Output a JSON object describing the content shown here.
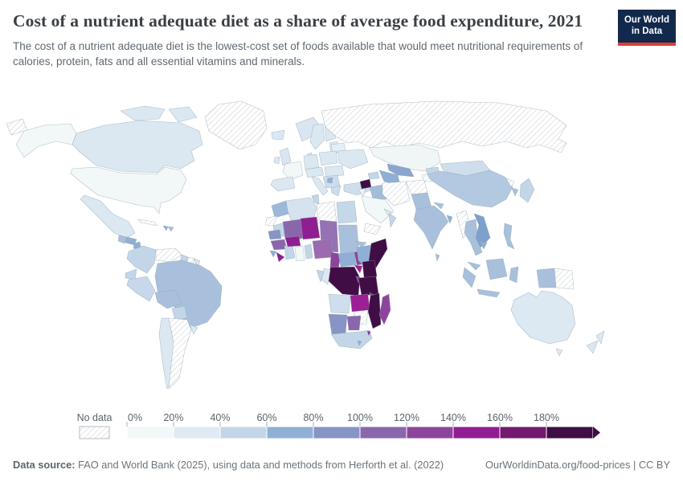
{
  "header": {
    "title": "Cost of a nutrient adequate diet as a share of average food expenditure, 2021",
    "subtitle": "The cost of a nutrient adequate diet is the lowest-cost set of foods available that would meet nutritional requirements of calories, protein, fats and all essential vitamins and minerals.",
    "logo_line1": "Our World",
    "logo_line2": "in Data",
    "logo_bg": "#12294d",
    "logo_accent": "#dc3e32"
  },
  "footer": {
    "source_label": "Data source:",
    "source_text": " FAO and World Bank (2025), using data and methods from Herforth et al. (2022)",
    "link_text": "OurWorldinData.org/food-prices | CC BY"
  },
  "chart_data": {
    "type": "choropleth_map",
    "title": "Cost of a nutrient adequate diet as a share of average food expenditure",
    "year": "2021",
    "unit": "%",
    "projection": "world",
    "legend": {
      "no_data_label": "No data",
      "tick_labels": [
        "0%",
        "20%",
        "40%",
        "60%",
        "80%",
        "100%",
        "120%",
        "140%",
        "160%",
        "180%"
      ],
      "bin_colors": [
        "#f2f8f7",
        "#dfeaf3",
        "#c2d6e8",
        "#8fb0d4",
        "#8794c6",
        "#8a67ad",
        "#8d459c",
        "#911d92",
        "#731a70",
        "#400d45"
      ],
      "bin_ranges": [
        "0-20%",
        "20-40%",
        "40-60%",
        "60-80%",
        "80-100%",
        "100-120%",
        "120-140%",
        "140-160%",
        "160-180%",
        "180%+"
      ],
      "open_ended_max": true,
      "no_data_pattern": "diagonal-hatch"
    },
    "regions": {
      "United States": {
        "bin": "0-20%",
        "color": "#f2f8f7"
      },
      "France": {
        "bin": "0-20%",
        "color": "#f2f8f7"
      },
      "Kazakhstan": {
        "bin": "0-20%",
        "color": "#f0f6f6"
      },
      "Saudi Arabia": {
        "bin": "0-20%",
        "color": "#f2f8f7"
      },
      "Ghana": {
        "bin": "0-20%",
        "color": "#f2f8f7"
      },
      "Jordan": {
        "bin": "0-20%",
        "color": "#eef4f5"
      },
      "Canada": {
        "bin": "20-40%",
        "color": "#dbe8f2"
      },
      "United Kingdom": {
        "bin": "20-40%",
        "color": "#d9e6f1"
      },
      "Ireland": {
        "bin": "20-40%",
        "color": "#dbe8f2"
      },
      "Iceland": {
        "bin": "20-40%",
        "color": "#dbe8f2"
      },
      "Norway": {
        "bin": "20-40%",
        "color": "#d9e6f1"
      },
      "Sweden": {
        "bin": "20-40%",
        "color": "#dbe8f2"
      },
      "Finland": {
        "bin": "20-40%",
        "color": "#dbe8f2"
      },
      "Denmark": {
        "bin": "20-40%",
        "color": "#dbe8f2"
      },
      "Germany": {
        "bin": "20-40%",
        "color": "#dbe8f2"
      },
      "Central Europe": {
        "bin": "20-40%",
        "color": "#dbe8f2"
      },
      "Poland": {
        "bin": "20-40%",
        "color": "#dbe8f2"
      },
      "Ukraine": {
        "bin": "20-40%",
        "color": "#dbe8f2"
      },
      "Belarus": {
        "bin": "20-40%",
        "color": "#e4eef5"
      },
      "Baltics": {
        "bin": "20-40%",
        "color": "#dbe8f2"
      },
      "Romania": {
        "bin": "20-40%",
        "color": "#dbe8f2"
      },
      "Spain": {
        "bin": "20-40%",
        "color": "#dbe8f2"
      },
      "Italy": {
        "bin": "20-40%",
        "color": "#dbe8f2"
      },
      "Greece": {
        "bin": "20-40%",
        "color": "#ccdcec"
      },
      "Mexico": {
        "bin": "20-40%",
        "color": "#dbe8f2"
      },
      "Chile": {
        "bin": "20-40%",
        "color": "#dbe8f2"
      },
      "Uruguay": {
        "bin": "20-40%",
        "color": "#dbe8f2"
      },
      "French Guiana": {
        "bin": "20-40%",
        "color": "#dbe8f2"
      },
      "Australia": {
        "bin": "20-40%",
        "color": "#dce9f3"
      },
      "New Zealand": {
        "bin": "20-40%",
        "color": "#dbe8f2"
      },
      "Algeria": {
        "bin": "20-40%",
        "color": "#d5e3ef"
      },
      "Angola": {
        "bin": "20-40%",
        "color": "#cfdeed"
      },
      "Mongolia": {
        "bin": "20-40%",
        "color": "#cfdeed"
      },
      "Congo": {
        "bin": "20-40%",
        "color": "#dbe8f2"
      },
      "United Arab Emirates": {
        "bin": "20-40%",
        "color": "#dbe8f2"
      },
      "Colombia": {
        "bin": "40-60%",
        "color": "#c2d6e8"
      },
      "Peru": {
        "bin": "40-60%",
        "color": "#c6d8ea"
      },
      "Ecuador": {
        "bin": "40-60%",
        "color": "#c2d6e8"
      },
      "Paraguay": {
        "bin": "40-60%",
        "color": "#c2d6e8"
      },
      "Guyana": {
        "bin": "40-60%",
        "color": "#c2d6e8"
      },
      "South Africa": {
        "bin": "40-60%",
        "color": "#c2d6e8"
      },
      "Egypt": {
        "bin": "40-60%",
        "color": "#c5d8ea"
      },
      "Tunisia": {
        "bin": "40-60%",
        "color": "#c2d6e8"
      },
      "Mauritania": {
        "bin": "40-60%",
        "color": "#c2d6e8"
      },
      "Cote d'Ivoire": {
        "bin": "40-60%",
        "color": "#c2d6e8"
      },
      "Togo and Benin": {
        "bin": "40-60%",
        "color": "#c2d6e8"
      },
      "Japan": {
        "bin": "40-60%",
        "color": "#c2d6e8"
      },
      "Turkey": {
        "bin": "40-60%",
        "color": "#cfdeed"
      },
      "Gabon": {
        "bin": "40-60%",
        "color": "#c2d6e8"
      },
      "Costa Rica": {
        "bin": "40-60%",
        "color": "#c2d6e8"
      },
      "Oman": {
        "bin": "40-60%",
        "color": "#c2d6e8"
      },
      "Kyrgyzstan": {
        "bin": "40-60%",
        "color": "#c2d6e8"
      },
      "Caucasus": {
        "bin": "40-60%",
        "color": "#c2d6e8"
      },
      "China": {
        "bin": "40-60%",
        "color": "#b3c9e1"
      },
      "Brazil": {
        "bin": "60-80%",
        "color": "#a9c0dc"
      },
      "Bolivia": {
        "bin": "60-80%",
        "color": "#a9c0dc"
      },
      "Guatemala": {
        "bin": "60-80%",
        "color": "#a9c0dc"
      },
      "Panama": {
        "bin": "60-80%",
        "color": "#a9c0dc"
      },
      "Dominican Republic": {
        "bin": "60-80%",
        "color": "#a9c0dc"
      },
      "India": {
        "bin": "60-80%",
        "color": "#a9c0dc"
      },
      "Indonesia": {
        "bin": "60-80%",
        "color": "#a9c0dc"
      },
      "Philippines": {
        "bin": "60-80%",
        "color": "#a9c0dc"
      },
      "Malaysia": {
        "bin": "60-80%",
        "color": "#a9c0dc"
      },
      "Thailand": {
        "bin": "60-80%",
        "color": "#a9c0dc"
      },
      "Sudan": {
        "bin": "60-80%",
        "color": "#a9c0dc"
      },
      "Iraq": {
        "bin": "60-80%",
        "color": "#a3bcd9"
      },
      "Pakistan": {
        "bin": "60-80%",
        "color": "#a9c0dc"
      },
      "Sri Lanka": {
        "bin": "60-80%",
        "color": "#a9c0dc"
      },
      "Nepal": {
        "bin": "60-80%",
        "color": "#a9c0dc"
      },
      "Eritrea": {
        "bin": "60-80%",
        "color": "#a9c0dc"
      },
      "South Korea": {
        "bin": "60-80%",
        "color": "#a9c0dc"
      },
      "Vietnam": {
        "bin": "80-100%",
        "color": "#7f9fcd"
      },
      "Cambodia": {
        "bin": "80-100%",
        "color": "#8fb0d4"
      },
      "Honduras": {
        "bin": "80-100%",
        "color": "#8fb0d4"
      },
      "Nicaragua": {
        "bin": "80-100%",
        "color": "#8fb0d4"
      },
      "Haiti": {
        "bin": "80-100%",
        "color": "#8fb0d4"
      },
      "Uzbekistan": {
        "bin": "80-100%",
        "color": "#8aa6ce"
      },
      "Turkmenistan": {
        "bin": "80-100%",
        "color": "#8fb0d4"
      },
      "Ethiopia": {
        "bin": "80-100%",
        "color": "#8fb0d4"
      },
      "Central African Republic": {
        "bin": "80-100%",
        "color": "#8fb0d4"
      },
      "Sierra Leone": {
        "bin": "80-100%",
        "color": "#8fb0d4"
      },
      "Morocco": {
        "bin": "80-100%",
        "color": "#9db8d8"
      },
      "Bangladesh": {
        "bin": "80-100%",
        "color": "#8fb0d4"
      },
      "Lesotho": {
        "bin": "80-100%",
        "color": "#8fb0d4"
      },
      "Bosnia": {
        "bin": "80-100%",
        "color": "#8fb0d4"
      },
      "Senegal": {
        "bin": "80-100%",
        "color": "#8794c6"
      },
      "Namibia": {
        "bin": "80-100%",
        "color": "#8794c6"
      },
      "Mali": {
        "bin": "100-120%",
        "color": "#8a67ad"
      },
      "Guinea": {
        "bin": "100-120%",
        "color": "#8a67ad"
      },
      "Nigeria": {
        "bin": "100-120%",
        "color": "#9b6ab0"
      },
      "Botswana": {
        "bin": "100-120%",
        "color": "#8a67ad"
      },
      "Chad": {
        "bin": "100-120%",
        "color": "#9572b4"
      },
      "Cameroon": {
        "bin": "120-140%",
        "color": "#8d459c"
      },
      "South Sudan": {
        "bin": "120-140%",
        "color": "#8d459c"
      },
      "Madagascar": {
        "bin": "120-140%",
        "color": "#8d459c"
      },
      "Malawi": {
        "bin": "120-140%",
        "color": "#8d459c"
      },
      "Rwanda and Burundi": {
        "bin": "120-140%",
        "color": "#8d459c"
      },
      "Niger": {
        "bin": "140-160%",
        "color": "#911d92"
      },
      "Burkina Faso": {
        "bin": "140-160%",
        "color": "#911d92"
      },
      "Liberia": {
        "bin": "140-160%",
        "color": "#911d92"
      },
      "Uganda": {
        "bin": "140-160%",
        "color": "#9c1f96"
      },
      "Zambia": {
        "bin": "140-160%",
        "color": "#9c1f96"
      },
      "Eswatini": {
        "bin": "140-160%",
        "color": "#911d92"
      },
      "Democratic Republic of Congo": {
        "bin": "180%+",
        "color": "#400d45"
      },
      "Kenya": {
        "bin": "180%+",
        "color": "#400d45"
      },
      "Tanzania": {
        "bin": "180%+",
        "color": "#400d45"
      },
      "Mozambique": {
        "bin": "180%+",
        "color": "#400d45"
      },
      "Somalia": {
        "bin": "180%+",
        "color": "#400d45"
      },
      "Syria": {
        "bin": "180%+",
        "color": "#400d45"
      },
      "Russia": {
        "bin": "No data",
        "color": "no-data"
      },
      "Greenland": {
        "bin": "No data",
        "color": "no-data"
      },
      "Argentina": {
        "bin": "No data",
        "color": "no-data"
      },
      "Venezuela": {
        "bin": "No data",
        "color": "no-data"
      },
      "Suriname": {
        "bin": "No data",
        "color": "no-data"
      },
      "Cuba": {
        "bin": "No data",
        "color": "no-data"
      },
      "Iran": {
        "bin": "No data",
        "color": "no-data"
      },
      "Afghanistan": {
        "bin": "No data",
        "color": "no-data"
      },
      "Tajikistan": {
        "bin": "No data",
        "color": "no-data"
      },
      "Yemen": {
        "bin": "No data",
        "color": "no-data"
      },
      "Zimbabwe": {
        "bin": "No data",
        "color": "no-data"
      },
      "Papua New Guinea": {
        "bin": "No data",
        "color": "no-data"
      },
      "Myanmar": {
        "bin": "No data",
        "color": "no-data"
      },
      "North Korea": {
        "bin": "No data",
        "color": "no-data"
      },
      "Libya": {
        "bin": "No data",
        "color": "no-data"
      },
      "Western Sahara": {
        "bin": "No data",
        "color": "no-data"
      }
    }
  }
}
